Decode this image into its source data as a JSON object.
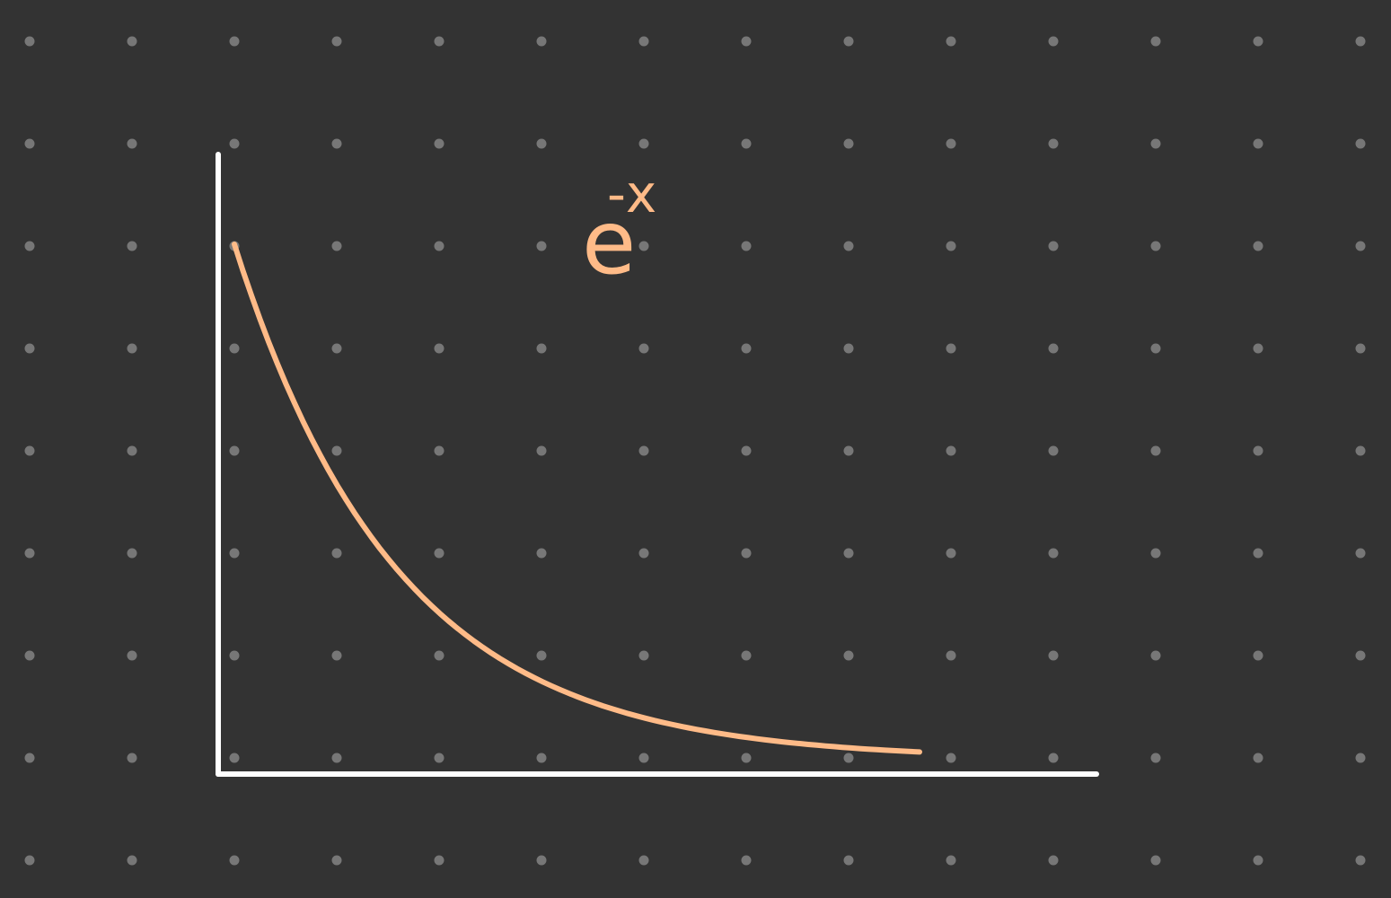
{
  "canvas": {
    "background_color": "#333333",
    "dot_color": "#777777"
  },
  "sketch": {
    "axes_color": "#ffffff",
    "curve_color": "#ffbb88",
    "curve_function": "exponential-decay",
    "label": {
      "base": "e",
      "exponent": "-x"
    }
  }
}
